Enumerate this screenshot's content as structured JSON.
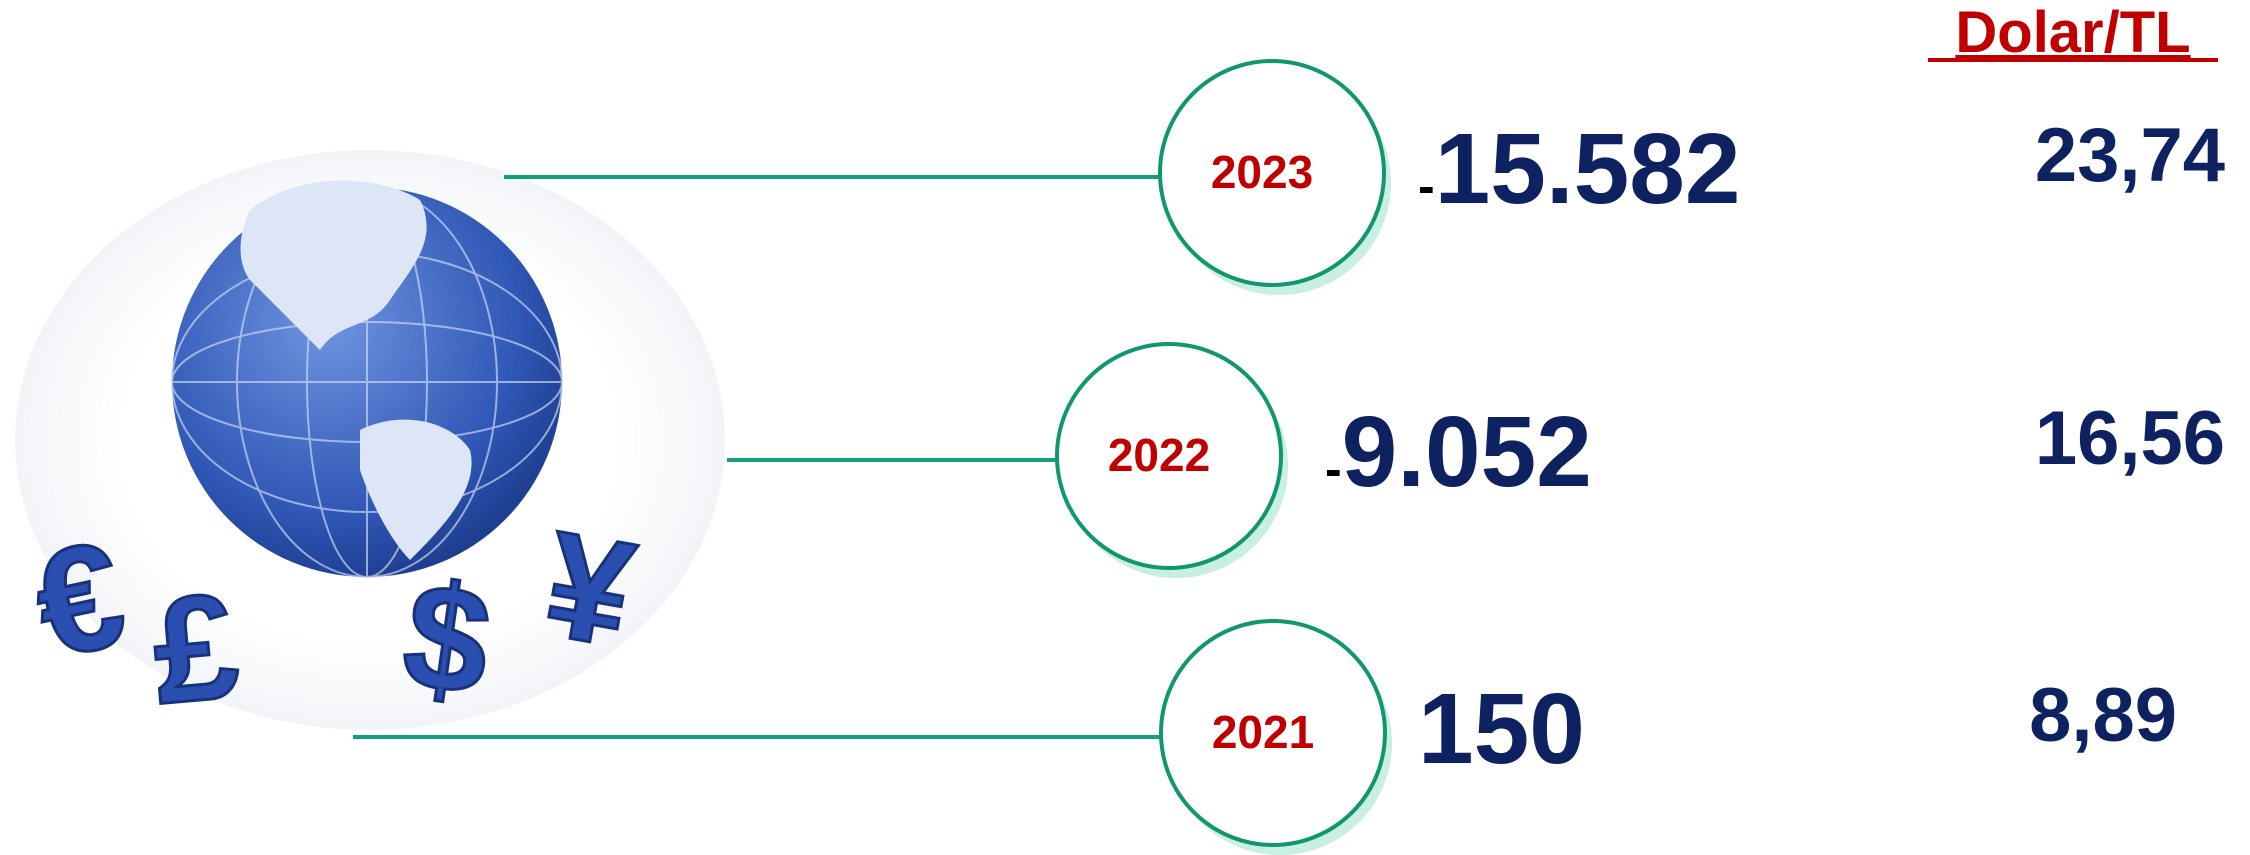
{
  "header": {
    "title": "Dolar/TL"
  },
  "icons": [
    "€",
    "£",
    "$",
    "¥"
  ],
  "rows": [
    {
      "year": "2023",
      "sign": "-",
      "amount": "15.582",
      "rate": "23,74"
    },
    {
      "year": "2022",
      "sign": "-",
      "amount": "9.052",
      "rate": "16,56"
    },
    {
      "year": "2021",
      "amount": "150",
      "rate": "8,89"
    }
  ]
}
